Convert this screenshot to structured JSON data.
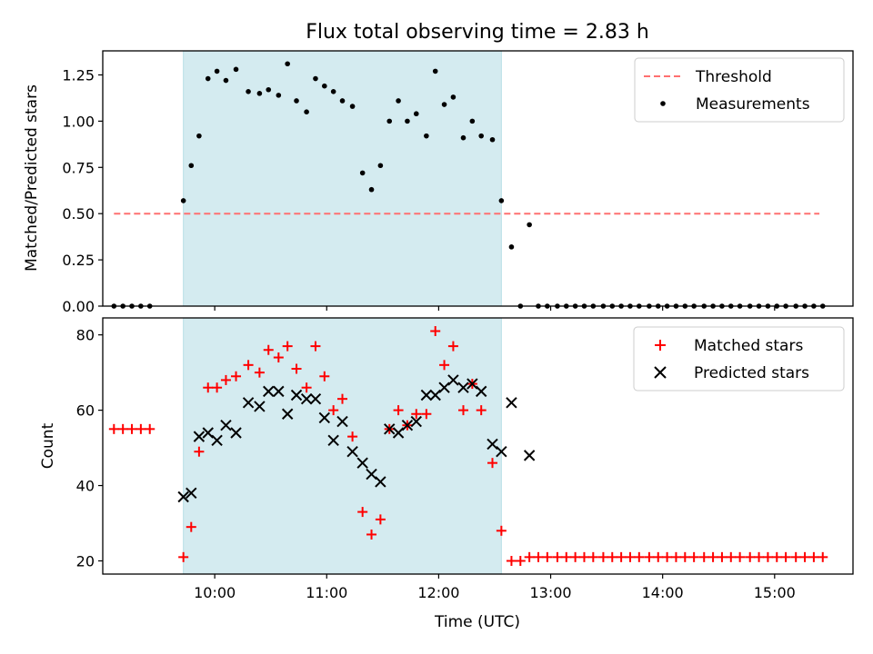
{
  "chart_data": {
    "title": "Flux total observing time = 2.83 h",
    "xlabel": "Time (UTC)",
    "x_unit": "hours (UTC)",
    "xlim": [
      9.0,
      15.7
    ],
    "xticks": [
      {
        "value": 10,
        "label": "10:00"
      },
      {
        "value": 11,
        "label": "11:00"
      },
      {
        "value": 12,
        "label": "12:00"
      },
      {
        "value": 13,
        "label": "13:00"
      },
      {
        "value": 14,
        "label": "14:00"
      },
      {
        "value": 15,
        "label": "15:00"
      }
    ],
    "observing_window": [
      9.72,
      12.56
    ],
    "top": {
      "type": "scatter",
      "ylabel": "Matched/Predicted stars",
      "ylim": [
        0,
        1.38
      ],
      "yticks": [
        {
          "value": 0,
          "label": "0.00"
        },
        {
          "value": 0.25,
          "label": "0.25"
        },
        {
          "value": 0.5,
          "label": "0.50"
        },
        {
          "value": 0.75,
          "label": "0.75"
        },
        {
          "value": 1.0,
          "label": "1.00"
        },
        {
          "value": 1.25,
          "label": "1.25"
        }
      ],
      "threshold": {
        "name": "Threshold",
        "value": 0.5,
        "x_range": [
          9.1,
          15.4
        ],
        "color": "#ff7070"
      },
      "measurements": {
        "name": "Measurements",
        "color": "#000000",
        "x": [
          9.1,
          9.18,
          9.26,
          9.34,
          9.42,
          9.72,
          9.79,
          9.86,
          9.94,
          10.02,
          10.1,
          10.19,
          10.3,
          10.4,
          10.48,
          10.57,
          10.65,
          10.73,
          10.82,
          10.9,
          10.98,
          11.06,
          11.14,
          11.23,
          11.32,
          11.4,
          11.48,
          11.56,
          11.64,
          11.72,
          11.8,
          11.89,
          11.97,
          12.05,
          12.13,
          12.22,
          12.3,
          12.38,
          12.48,
          12.56,
          12.65,
          12.73,
          12.81,
          12.89,
          12.97,
          13.06,
          13.14,
          13.22,
          13.3,
          13.38,
          13.47,
          13.55,
          13.63,
          13.71,
          13.79,
          13.88,
          13.96,
          14.04,
          14.12,
          14.2,
          14.28,
          14.37,
          14.45,
          14.53,
          14.61,
          14.69,
          14.78,
          14.86,
          14.94,
          15.02,
          15.1,
          15.19,
          15.27,
          15.35,
          15.43
        ],
        "y": [
          0,
          0,
          0,
          0,
          0,
          0.57,
          0.76,
          0.92,
          1.23,
          1.27,
          1.22,
          1.28,
          1.16,
          1.15,
          1.17,
          1.14,
          1.31,
          1.11,
          1.05,
          1.23,
          1.19,
          1.16,
          1.11,
          1.08,
          0.72,
          0.63,
          0.76,
          1.0,
          1.11,
          1.0,
          1.04,
          0.92,
          1.27,
          1.09,
          1.13,
          0.91,
          1.0,
          0.92,
          0.9,
          0.57,
          0.32,
          0,
          0.44,
          0,
          0,
          0,
          0,
          0,
          0,
          0,
          0,
          0,
          0,
          0,
          0,
          0,
          0,
          0,
          0,
          0,
          0,
          0,
          0,
          0,
          0,
          0,
          0,
          0,
          0,
          0,
          0,
          0,
          0,
          0,
          0
        ]
      },
      "legend": {
        "placement": "upper right",
        "entries": [
          "Threshold",
          "Measurements"
        ]
      }
    },
    "bottom": {
      "type": "scatter",
      "ylabel": "Count",
      "ylim": [
        16.5,
        84.5
      ],
      "yticks": [
        {
          "value": 20,
          "label": "20"
        },
        {
          "value": 40,
          "label": "40"
        },
        {
          "value": 60,
          "label": "60"
        },
        {
          "value": 80,
          "label": "80"
        }
      ],
      "matched": {
        "name": "Matched stars",
        "color": "#ff0000",
        "marker": "+",
        "x": [
          9.1,
          9.18,
          9.26,
          9.34,
          9.42,
          9.72,
          9.79,
          9.86,
          9.94,
          10.02,
          10.1,
          10.19,
          10.3,
          10.4,
          10.48,
          10.57,
          10.65,
          10.73,
          10.82,
          10.9,
          10.98,
          11.06,
          11.14,
          11.23,
          11.32,
          11.4,
          11.48,
          11.56,
          11.64,
          11.72,
          11.8,
          11.89,
          11.97,
          12.05,
          12.13,
          12.22,
          12.3,
          12.38,
          12.48,
          12.56,
          12.65,
          12.73,
          12.81,
          12.89,
          12.97,
          13.06,
          13.14,
          13.22,
          13.3,
          13.38,
          13.47,
          13.55,
          13.63,
          13.71,
          13.79,
          13.88,
          13.96,
          14.04,
          14.12,
          14.2,
          14.28,
          14.37,
          14.45,
          14.53,
          14.61,
          14.69,
          14.78,
          14.86,
          14.94,
          15.02,
          15.1,
          15.19,
          15.27,
          15.35,
          15.43
        ],
        "y": [
          55,
          55,
          55,
          55,
          55,
          21,
          29,
          49,
          66,
          66,
          68,
          69,
          72,
          70,
          76,
          74,
          77,
          71,
          66,
          77,
          69,
          60,
          63,
          53,
          33,
          27,
          31,
          55,
          60,
          56,
          59,
          59,
          81,
          72,
          77,
          60,
          67,
          60,
          46,
          28,
          20,
          20,
          21,
          21,
          21,
          21,
          21,
          21,
          21,
          21,
          21,
          21,
          21,
          21,
          21,
          21,
          21,
          21,
          21,
          21,
          21,
          21,
          21,
          21,
          21,
          21,
          21,
          21,
          21,
          21,
          21,
          21,
          21,
          21,
          21
        ]
      },
      "predicted": {
        "name": "Predicted stars",
        "color": "#000000",
        "marker": "x",
        "x": [
          9.72,
          9.79,
          9.86,
          9.94,
          10.02,
          10.1,
          10.19,
          10.3,
          10.4,
          10.48,
          10.57,
          10.65,
          10.73,
          10.82,
          10.9,
          10.98,
          11.06,
          11.14,
          11.23,
          11.32,
          11.4,
          11.48,
          11.56,
          11.64,
          11.72,
          11.8,
          11.89,
          11.97,
          12.05,
          12.13,
          12.22,
          12.3,
          12.38,
          12.48,
          12.56,
          12.65,
          12.81
        ],
        "y": [
          37,
          38,
          53,
          54,
          52,
          56,
          54,
          62,
          61,
          65,
          65,
          59,
          64,
          63,
          63,
          58,
          52,
          57,
          49,
          46,
          43,
          41,
          55,
          54,
          56,
          57,
          64,
          64,
          66,
          68,
          66,
          67,
          65,
          51,
          49,
          62,
          48
        ]
      },
      "legend": {
        "placement": "upper right",
        "entries": [
          "Matched stars",
          "Predicted stars"
        ]
      }
    },
    "colors": {
      "window": "#d4ebf0",
      "window_edge": "#b8dfe6"
    }
  }
}
